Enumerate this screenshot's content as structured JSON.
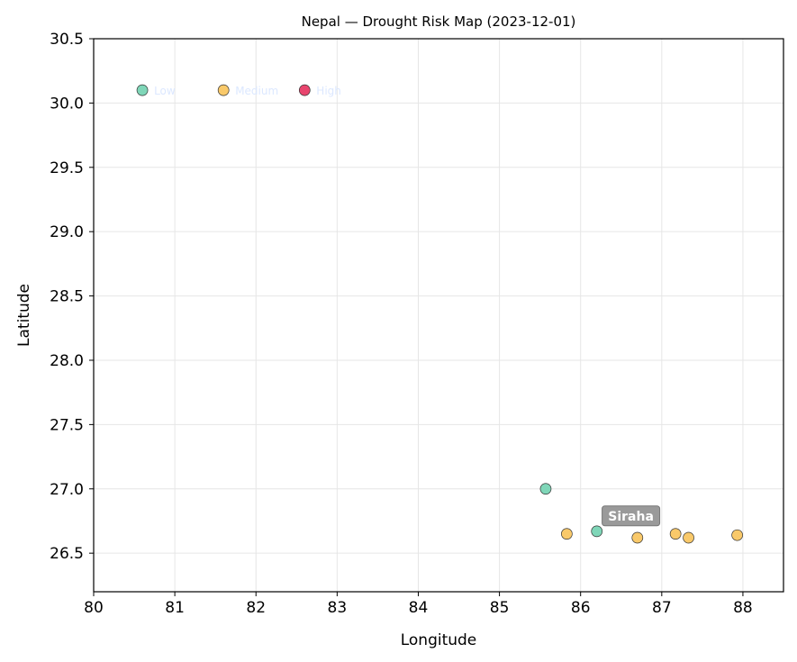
{
  "chart_data": {
    "type": "scatter",
    "title": "Nepal — Drought Risk Map (2023-12-01)",
    "xlabel": "Longitude",
    "ylabel": "Latitude",
    "xlim": [
      80,
      88.5
    ],
    "ylim": [
      26.2,
      30.5
    ],
    "xticks": [
      "80",
      "81",
      "82",
      "83",
      "84",
      "85",
      "86",
      "87",
      "88"
    ],
    "yticks": [
      "26.5",
      "27.0",
      "27.5",
      "28.0",
      "28.5",
      "29.0",
      "29.5",
      "30.0",
      "30.5"
    ],
    "grid": true,
    "colors": {
      "Low": "#7fd6b8",
      "Medium": "#f9c96a",
      "High": "#e8456e"
    },
    "legend": {
      "placement": "top-left",
      "entries": [
        {
          "label": "Low",
          "risk": "Low",
          "x": 80.6,
          "y": 30.1
        },
        {
          "label": "Medium",
          "risk": "Medium",
          "x": 81.6,
          "y": 30.1
        },
        {
          "label": "High",
          "risk": "High",
          "x": 82.6,
          "y": 30.1
        }
      ]
    },
    "points": [
      {
        "x": 85.57,
        "y": 27.0,
        "risk": "Low"
      },
      {
        "x": 85.83,
        "y": 26.65,
        "risk": "Medium"
      },
      {
        "x": 86.2,
        "y": 26.67,
        "risk": "Low"
      },
      {
        "x": 86.7,
        "y": 26.62,
        "risk": "Medium"
      },
      {
        "x": 87.17,
        "y": 26.65,
        "risk": "Medium"
      },
      {
        "x": 87.33,
        "y": 26.62,
        "risk": "Medium"
      },
      {
        "x": 87.93,
        "y": 26.64,
        "risk": "Medium"
      }
    ],
    "annotations": [
      {
        "text": "Siraha",
        "x": 86.62,
        "y": 26.79
      }
    ]
  }
}
